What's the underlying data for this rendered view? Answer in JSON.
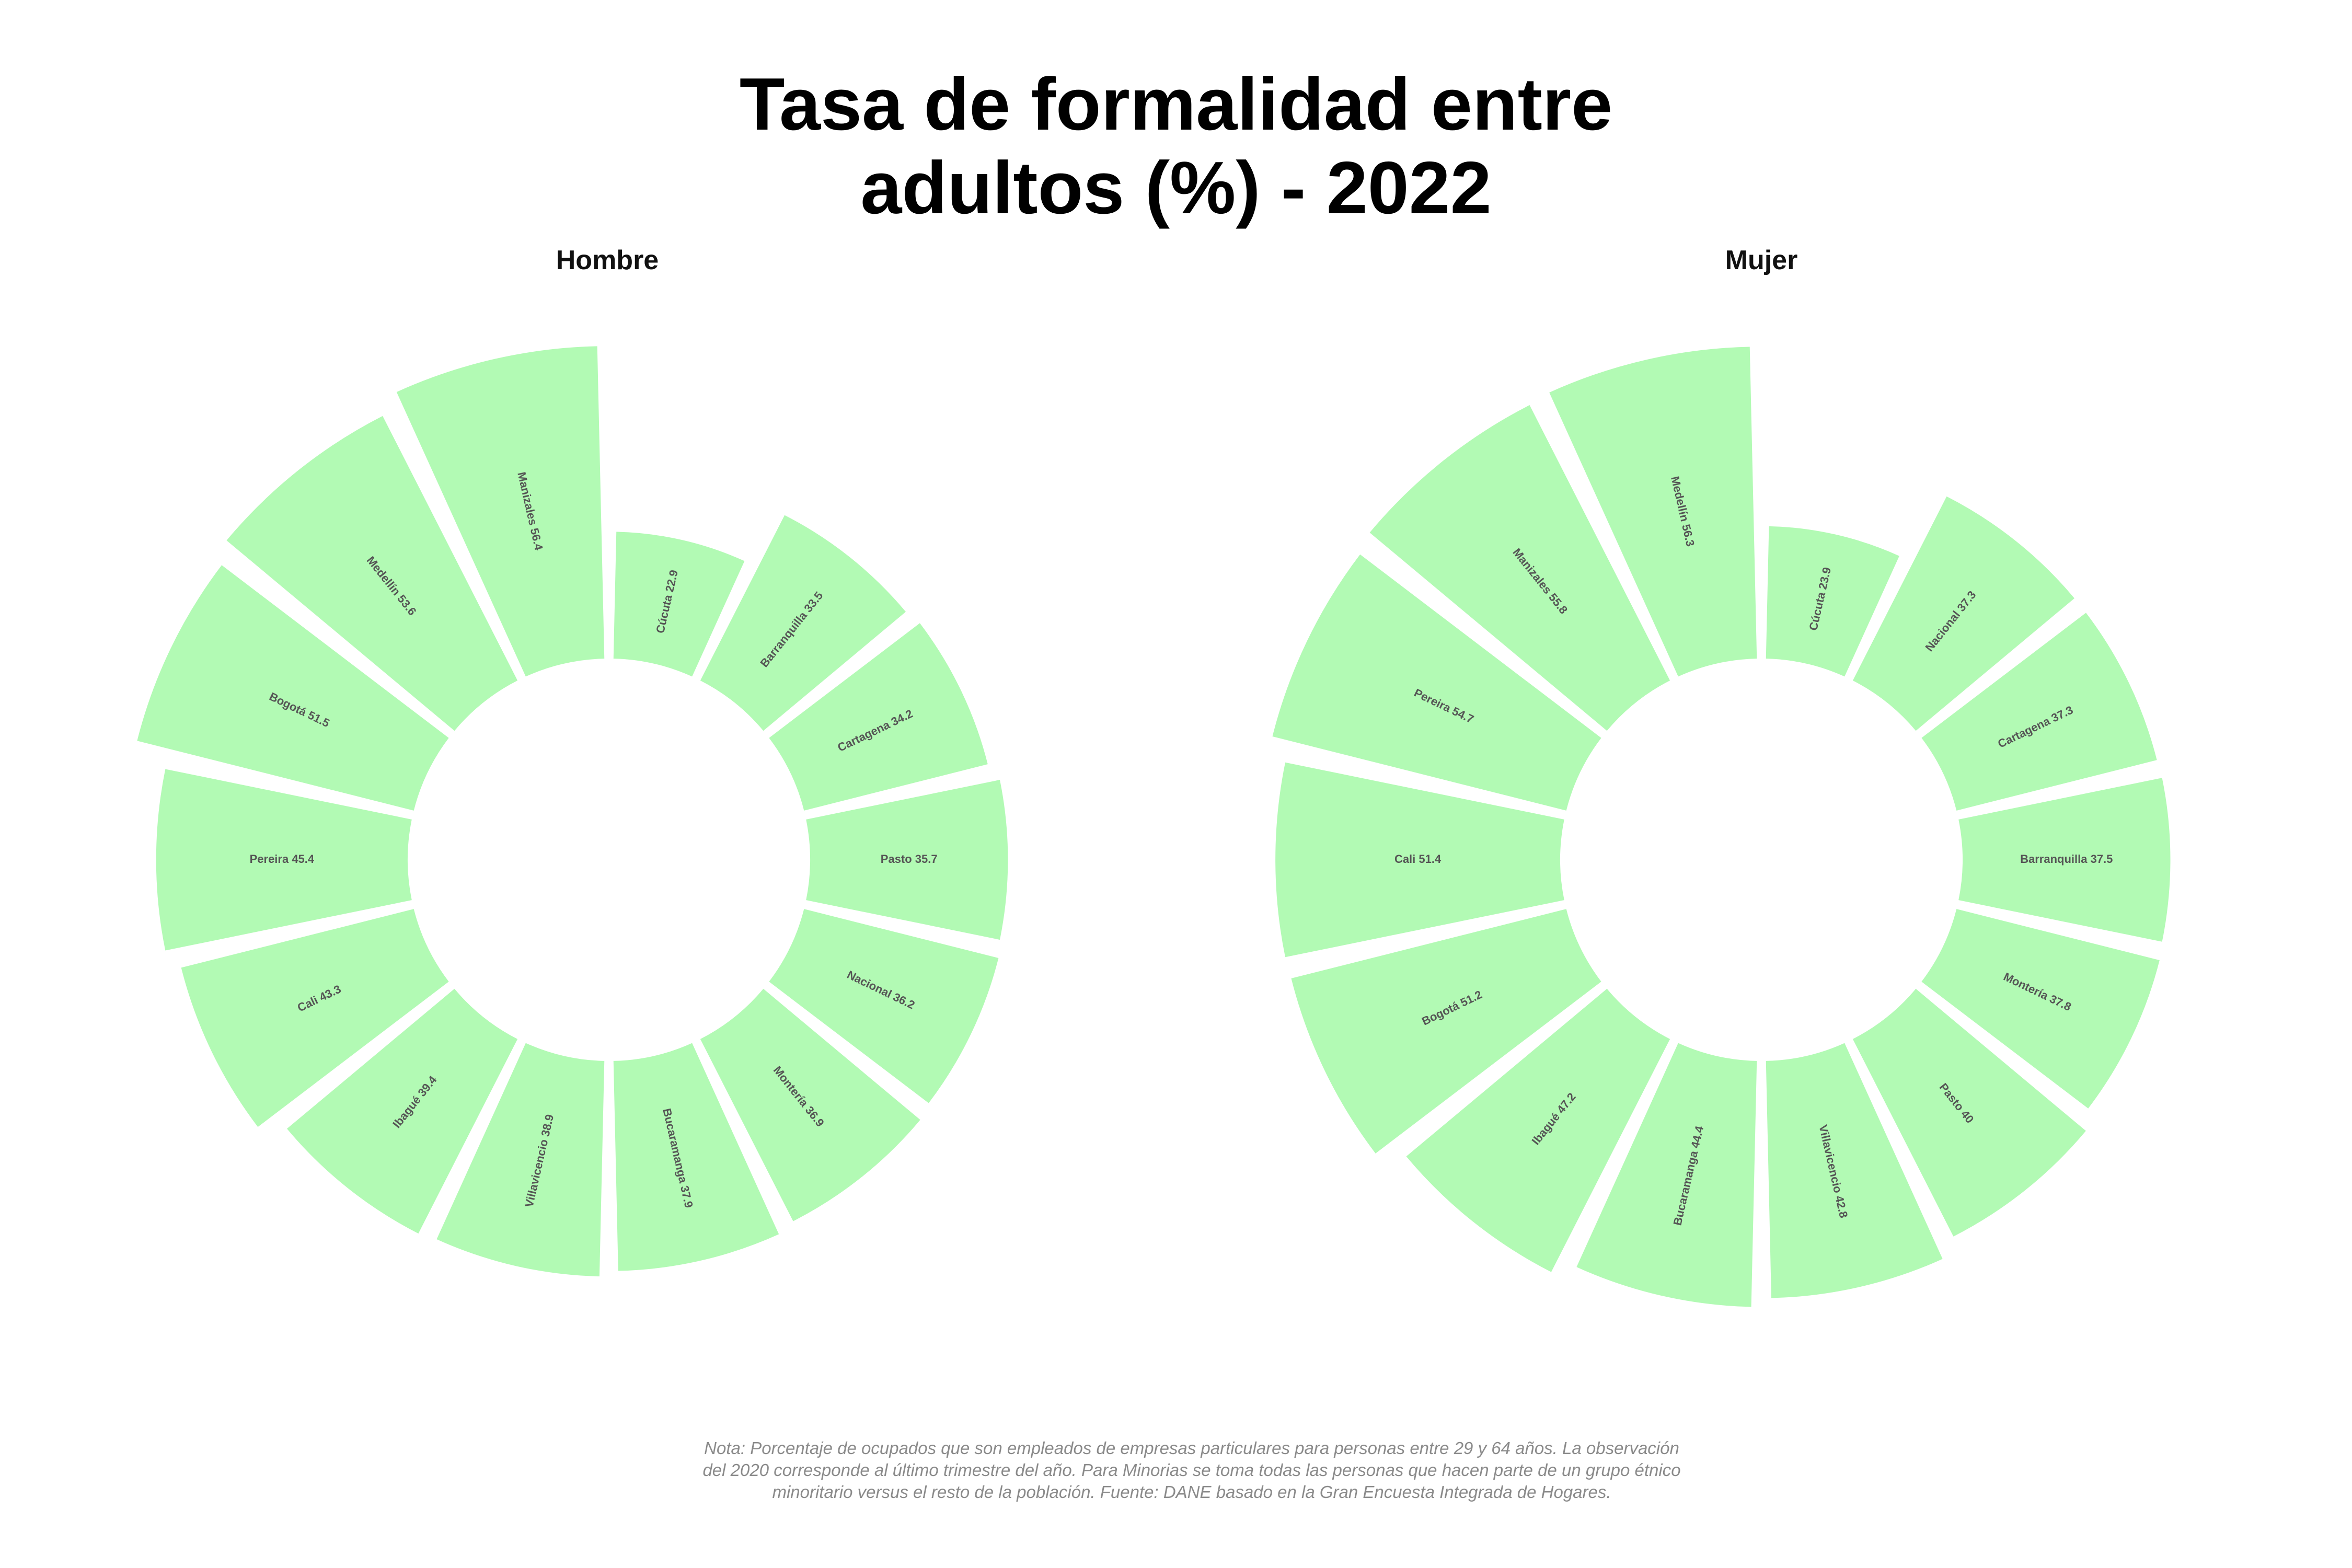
{
  "title_lines": [
    "Tasa de formalidad entre",
    "adultos (%) - 2022"
  ],
  "note": "Nota: Porcentaje de ocupados que son empleados de empresas particulares para personas entre 29 y 64 años. La observación del 2020 corresponde al último trimestre del año. Para Minorias se toma todas las personas que hacen parte de un grupo étnico minoritario versus el resto de la población. Fuente: DANE basado en la Gran Encuesta Integrada de Hogares.",
  "colors": {
    "bar": "#b2fab4",
    "label": "#555555"
  },
  "chart_data": [
    {
      "type": "bar",
      "subtype": "circular",
      "title": "Hombre",
      "categories": [
        "Cúcuta",
        "Barranquilla",
        "Cartagena",
        "Pasto",
        "Nacional",
        "Montería",
        "Bucaramanga",
        "Villavicencio",
        "Ibagué",
        "Cali",
        "Pereira",
        "Bogotá",
        "Medellín",
        "Manizales"
      ],
      "values": [
        22.9,
        33.5,
        34.2,
        35.7,
        36.2,
        36.9,
        37.9,
        38.9,
        39.4,
        43.3,
        45.4,
        51.5,
        53.6,
        56.4
      ],
      "labels": [
        "Cúcuta 22.9",
        "Barranquilla 33.5",
        "Cartagena 34.2",
        "Pasto 35.7",
        "Nacional 36.2",
        "Montería 36.9",
        "Bucaramanga 37.9",
        "Villavicencio 38.9",
        "Ibagué 39.4",
        "Cali 43.3",
        "Pereira 45.4",
        "Bogotá 51.5",
        "Medellín 53.6",
        "Manizales 56.4"
      ]
    },
    {
      "type": "bar",
      "subtype": "circular",
      "title": "Mujer",
      "categories": [
        "Cúcuta",
        "Nacional",
        "Cartagena",
        "Barranquilla",
        "Montería",
        "Pasto",
        "Villavicencio",
        "Bucaramanga",
        "Ibagué",
        "Bogotá",
        "Cali",
        "Pereira",
        "Manizales",
        "Medellín"
      ],
      "values": [
        23.9,
        37.3,
        37.3,
        37.5,
        37.8,
        40.0,
        42.8,
        44.4,
        47.2,
        51.2,
        51.4,
        54.7,
        55.8,
        56.3
      ],
      "labels": [
        "Cúcuta 23.9",
        "Nacional 37.3",
        "Cartagena 37.3",
        "Barranquilla 37.5",
        "Montería 37.8",
        "Pasto 40",
        "Villavicencio 42.8",
        "Bucaramanga 44.4",
        "Ibagué 47.2",
        "Bogotá 51.2",
        "Cali 51.4",
        "Pereira 54.7",
        "Manizales 55.8",
        "Medellín 56.3"
      ]
    }
  ]
}
